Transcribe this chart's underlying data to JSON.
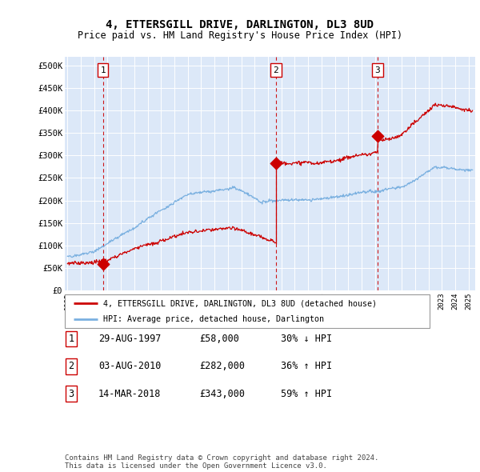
{
  "title1": "4, ETTERSGILL DRIVE, DARLINGTON, DL3 8UD",
  "title2": "Price paid vs. HM Land Registry's House Price Index (HPI)",
  "ylim": [
    0,
    520000
  ],
  "yticks": [
    0,
    50000,
    100000,
    150000,
    200000,
    250000,
    300000,
    350000,
    400000,
    450000,
    500000
  ],
  "ytick_labels": [
    "£0",
    "£50K",
    "£100K",
    "£150K",
    "£200K",
    "£250K",
    "£300K",
    "£350K",
    "£400K",
    "£450K",
    "£500K"
  ],
  "background_color": "#dce8f8",
  "sales": [
    {
      "date_num": 1997.66,
      "price": 58000,
      "label": "1"
    },
    {
      "date_num": 2010.59,
      "price": 282000,
      "label": "2"
    },
    {
      "date_num": 2018.2,
      "price": 343000,
      "label": "3"
    }
  ],
  "legend_red": "4, ETTERSGILL DRIVE, DARLINGTON, DL3 8UD (detached house)",
  "legend_blue": "HPI: Average price, detached house, Darlington",
  "table_rows": [
    {
      "num": "1",
      "date": "29-AUG-1997",
      "price": "£58,000",
      "hpi": "30% ↓ HPI"
    },
    {
      "num": "2",
      "date": "03-AUG-2010",
      "price": "£282,000",
      "hpi": "36% ↑ HPI"
    },
    {
      "num": "3",
      "date": "14-MAR-2018",
      "price": "£343,000",
      "hpi": "59% ↑ HPI"
    }
  ],
  "footer": "Contains HM Land Registry data © Crown copyright and database right 2024.\nThis data is licensed under the Open Government Licence v3.0.",
  "red_color": "#cc0000",
  "blue_color": "#7ab0e0",
  "dashed_color": "#cc0000"
}
